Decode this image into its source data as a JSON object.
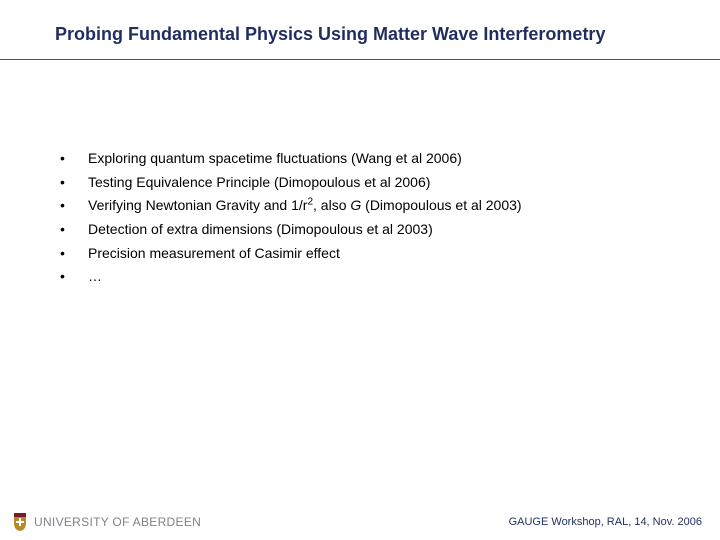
{
  "title": "Probing Fundamental Physics Using Matter Wave Interferometry",
  "title_color": "#1f2e5e",
  "underline_color": "#555555",
  "background_color": "#ffffff",
  "bullets": {
    "marker": "•",
    "items": [
      {
        "text": "Exploring quantum spacetime fluctuations  (Wang et al 2006)"
      },
      {
        "text_html": "Testing Equivalence Principle (Dimopoulous et al 2006)"
      },
      {
        "text_html": "Verifying Newtonian Gravity and 1/r<sup>2</sup>, also <i>G</i> (Dimopoulous et al 2003)"
      },
      {
        "text_html": "Detection of extra dimensions (Dimopoulous et al 2003)"
      },
      {
        "text_html": "Precision measurement of Casimir effect"
      },
      {
        "text_html": "…"
      }
    ],
    "fontsize": 14,
    "text_color": "#000000"
  },
  "footer": {
    "university_html": "U<span class='sc'>NIVERSITY OF</span> ABERDEEN",
    "university_color": "#7e838a",
    "crest_colors": {
      "shield": "#b38b2e",
      "accent": "#7a1824"
    },
    "right_text": "GAUGE Workshop, RAL, 14, Nov. 2006",
    "right_color": "#1f2e5e"
  }
}
